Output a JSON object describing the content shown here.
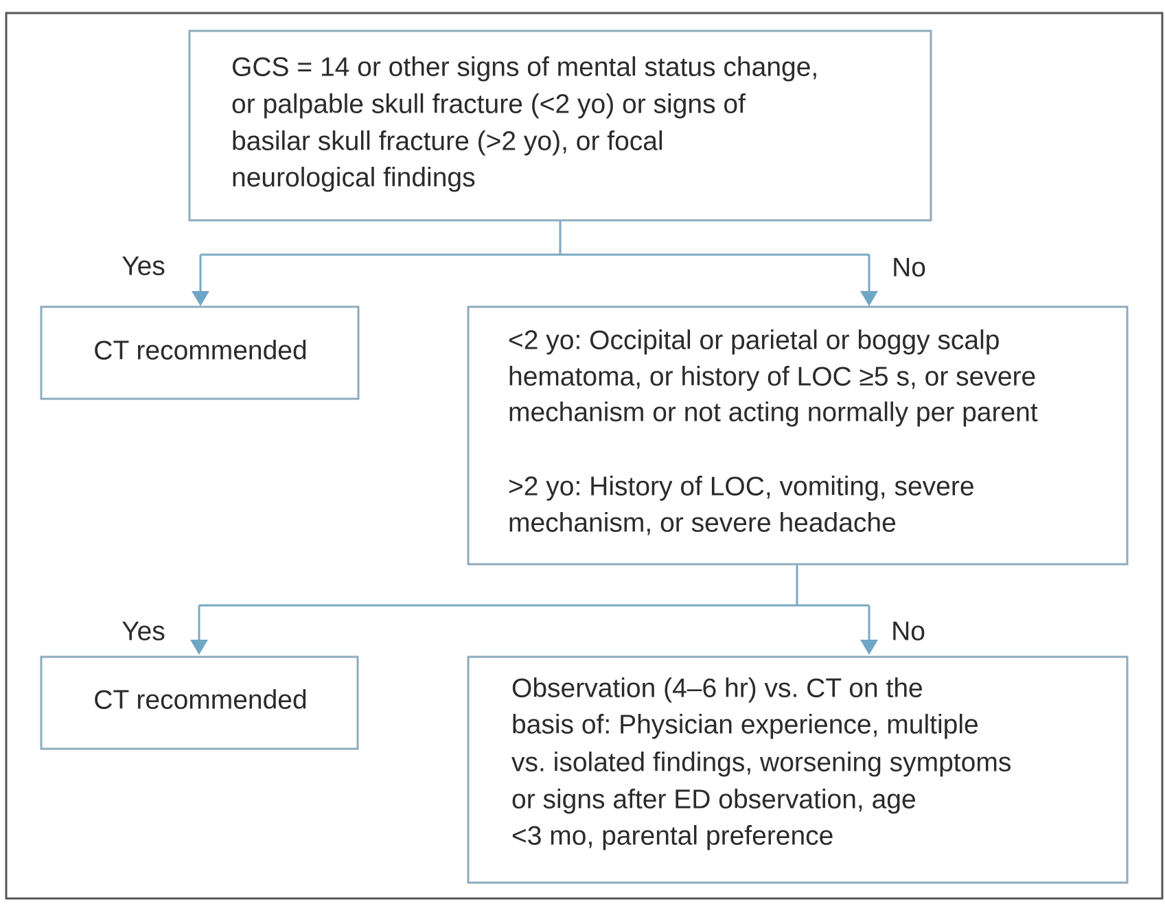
{
  "nodes": [
    {
      "lines": [
        "GCS = 14 or other signs of mental status change,",
        "or palpable skull fracture (<2 yo) or signs of",
        "basilar skull fracture (>2 yo), or focal",
        "neurological findings"
      ]
    },
    {
      "lines": [
        "CT recommended"
      ]
    },
    {
      "lines": [
        "<2 yo: Occipital or parietal or boggy scalp",
        "hematoma, or history of LOC ≥5 s, or severe",
        "mechanism or not acting normally per parent",
        ">2 yo: History of LOC, vomiting, severe",
        "mechanism, or severe headache"
      ]
    },
    {
      "lines": [
        "CT recommended"
      ]
    },
    {
      "lines": [
        "Observation (4–6 hr) vs. CT on the",
        "basis of: Physician experience, multiple",
        "vs. isolated findings, worsening symptoms",
        "or signs after ED observation, age",
        "<3 mo, parental preference"
      ]
    }
  ],
  "edges": [
    {
      "label": "Yes"
    },
    {
      "label": "No"
    },
    {
      "label": "Yes"
    },
    {
      "label": "No"
    }
  ]
}
